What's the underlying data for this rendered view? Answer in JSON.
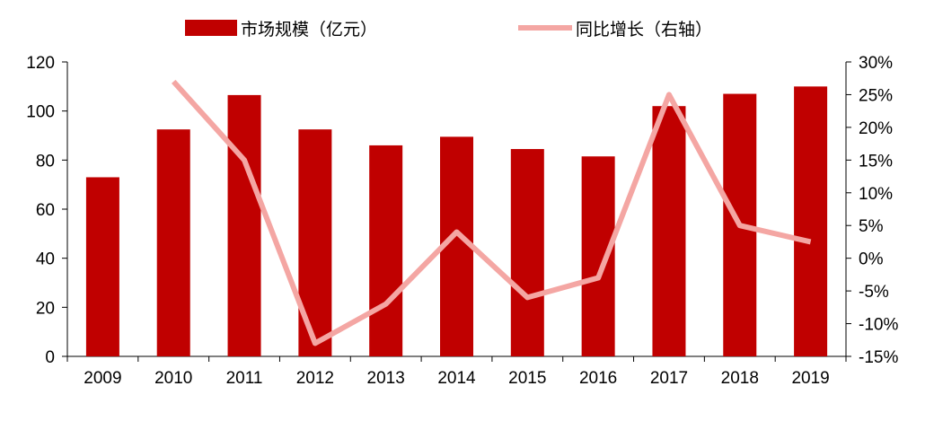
{
  "chart_data": {
    "type": "bar",
    "categories": [
      "2009",
      "2010",
      "2011",
      "2012",
      "2013",
      "2014",
      "2015",
      "2016",
      "2017",
      "2018",
      "2019"
    ],
    "series": [
      {
        "name": "市场规模（亿元）",
        "type": "bar",
        "axis": "left",
        "color": "#c00000",
        "values": [
          73,
          92.5,
          106.5,
          92.5,
          86,
          89.5,
          84.5,
          81.5,
          102,
          107,
          110
        ]
      },
      {
        "name": "同比增长（右轴）",
        "type": "line",
        "axis": "right",
        "color": "#f4a6a3",
        "values": [
          null,
          27,
          15,
          -13,
          -7,
          4,
          -6,
          -3,
          25,
          5,
          2.5
        ]
      }
    ],
    "y_left": {
      "ylim": [
        0,
        120
      ],
      "ticks": [
        0,
        20,
        40,
        60,
        80,
        100,
        120
      ]
    },
    "y_right": {
      "ylim": [
        -15,
        30
      ],
      "ticks": [
        -15,
        -10,
        -5,
        0,
        5,
        10,
        15,
        20,
        25,
        30
      ],
      "tick_labels": [
        "-15%",
        "-10%",
        "-5%",
        "0%",
        "5%",
        "10%",
        "15%",
        "20%",
        "25%",
        "30%"
      ]
    },
    "legend_position": "top",
    "grid": false
  }
}
